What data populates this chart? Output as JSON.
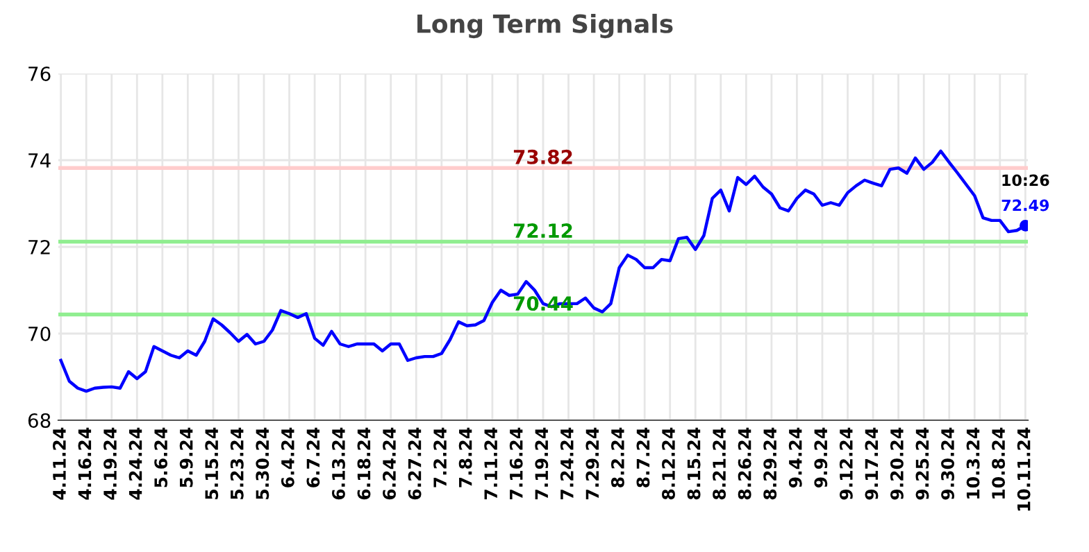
{
  "chart_data": {
    "type": "line",
    "title": "Long Term Signals",
    "categories": [
      "4.11.24",
      null,
      null,
      "4.16.24",
      null,
      null,
      "4.19.24",
      null,
      null,
      "4.24.24",
      null,
      null,
      "5.6.24",
      null,
      null,
      "5.9.24",
      null,
      null,
      "5.15.24",
      null,
      null,
      "5.23.24",
      null,
      null,
      "5.30.24",
      null,
      null,
      "6.4.24",
      null,
      null,
      "6.7.24",
      null,
      null,
      "6.13.24",
      null,
      null,
      "6.18.24",
      null,
      null,
      "6.24.24",
      null,
      null,
      "6.27.24",
      null,
      null,
      "7.2.24",
      null,
      null,
      "7.8.24",
      null,
      null,
      "7.11.24",
      null,
      null,
      "7.16.24",
      null,
      null,
      "7.19.24",
      null,
      null,
      "7.24.24",
      null,
      null,
      "7.29.24",
      null,
      null,
      "8.2.24",
      null,
      null,
      "8.7.24",
      null,
      null,
      "8.12.24",
      null,
      null,
      "8.15.24",
      null,
      null,
      "8.21.24",
      null,
      null,
      "8.26.24",
      null,
      null,
      "8.29.24",
      null,
      null,
      "9.4.24",
      null,
      null,
      "9.9.24",
      null,
      null,
      "9.12.24",
      null,
      null,
      "9.17.24",
      null,
      null,
      "9.20.24",
      null,
      null,
      "9.25.24",
      null,
      null,
      "9.30.24",
      null,
      null,
      "10.3.24",
      null,
      null,
      "10.8.24",
      null,
      null,
      "10.11.24"
    ],
    "series": [
      {
        "color": "#0000ff",
        "values": [
          69.38,
          68.9,
          68.74,
          68.67,
          68.74,
          68.76,
          68.77,
          68.74,
          69.12,
          68.96,
          69.12,
          69.7,
          69.6,
          69.5,
          69.44,
          69.6,
          69.5,
          69.82,
          70.34,
          70.2,
          70.02,
          69.82,
          69.98,
          69.76,
          69.82,
          70.08,
          70.53,
          70.46,
          70.37,
          70.46,
          69.89,
          69.73,
          70.05,
          69.76,
          69.7,
          69.76,
          69.76,
          69.76,
          69.6,
          69.76,
          69.76,
          69.38,
          69.44,
          69.47,
          69.47,
          69.54,
          69.86,
          70.27,
          70.18,
          70.2,
          70.3,
          70.72,
          71.0,
          70.88,
          70.91,
          71.2,
          71.0,
          70.69,
          70.62,
          70.69,
          70.69,
          70.69,
          70.82,
          70.59,
          70.5,
          70.69,
          71.52,
          71.81,
          71.71,
          71.52,
          71.52,
          71.71,
          71.68,
          72.19,
          72.22,
          71.94,
          72.26,
          73.12,
          73.31,
          72.83,
          73.6,
          73.44,
          73.63,
          73.38,
          73.22,
          72.9,
          72.83,
          73.12,
          73.31,
          73.22,
          72.96,
          73.02,
          72.96,
          73.25,
          73.41,
          73.54,
          73.47,
          73.41,
          73.79,
          73.82,
          73.7,
          74.05,
          73.79,
          73.95,
          74.21,
          73.95,
          73.7,
          73.44,
          73.18,
          72.67,
          72.61,
          72.61,
          72.35,
          72.38,
          72.49
        ],
        "value_labels": [
          null,
          null,
          null,
          null,
          null,
          null,
          null,
          null,
          null,
          null,
          null,
          null,
          null,
          null,
          null,
          null,
          null,
          null,
          null,
          null,
          null,
          null,
          null,
          null,
          null,
          null,
          null,
          null,
          null,
          null,
          null,
          null,
          null,
          null,
          null,
          null,
          null,
          null,
          null,
          null,
          null,
          null,
          null,
          null,
          null,
          null,
          null,
          null,
          null,
          null,
          null,
          null,
          null,
          null,
          null,
          null,
          null,
          null,
          null,
          null,
          null,
          null,
          null,
          null,
          null,
          null,
          null,
          null,
          null,
          null,
          null,
          null,
          null,
          null,
          null,
          null,
          null,
          null,
          null,
          null,
          null,
          null,
          null,
          null,
          null,
          null,
          null,
          null,
          null,
          null,
          null,
          null,
          null,
          null,
          null,
          null,
          null,
          null,
          null,
          null,
          null,
          null,
          null,
          null,
          null,
          null,
          null,
          null,
          null,
          null,
          null,
          null,
          null,
          null,
          "72.49"
        ]
      }
    ],
    "ylim": [
      68,
      76
    ],
    "yticks": [
      68,
      70,
      72,
      74,
      76
    ],
    "grid": true,
    "legend": false,
    "marker": "none",
    "line_style": "solid",
    "ref_lines": [
      {
        "axis": "y",
        "value": 73.82,
        "label": "73.82",
        "color": "#ffcccc"
      },
      {
        "axis": "y",
        "value": 72.12,
        "label": "72.12",
        "color": "#90ee90"
      },
      {
        "axis": "y",
        "value": 70.44,
        "label": "70.44",
        "color": "#90ee90"
      }
    ],
    "annotations": [
      "10:26"
    ]
  }
}
